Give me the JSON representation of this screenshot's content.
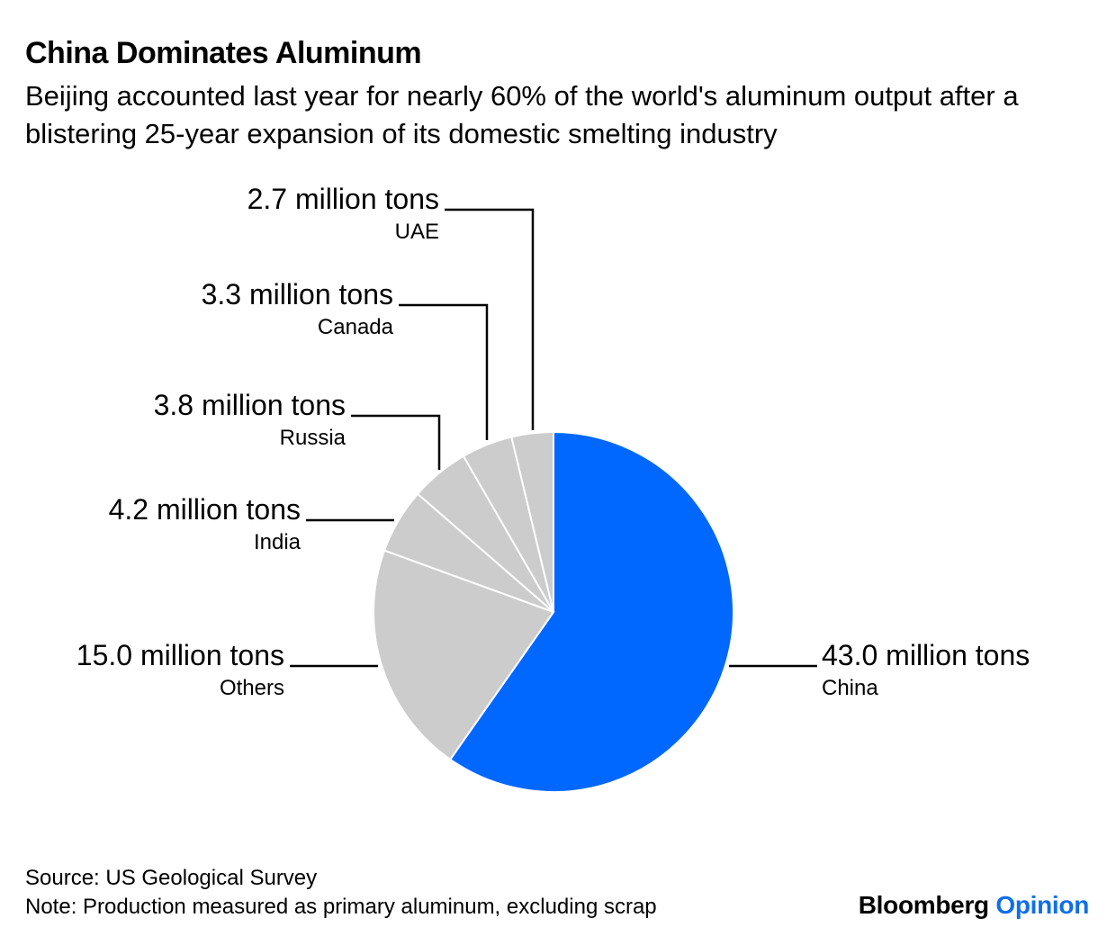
{
  "chart_data": {
    "type": "pie",
    "title": "China Dominates Aluminum",
    "subtitle": "Beijing accounted last year for nearly 60% of the world's aluminum output after a blistering 25-year expansion of its domestic smelting industry",
    "unit_suffix": " million tons",
    "slices": [
      {
        "name": "China",
        "value": 43.0,
        "label": "43.0 million tons",
        "color": "#0068ff"
      },
      {
        "name": "Others",
        "value": 15.0,
        "label": "15.0 million tons",
        "color": "#cccccc"
      },
      {
        "name": "India",
        "value": 4.2,
        "label": "4.2 million tons",
        "color": "#cccccc"
      },
      {
        "name": "Russia",
        "value": 3.8,
        "label": "3.8 million tons",
        "color": "#cccccc"
      },
      {
        "name": "Canada",
        "value": 3.3,
        "label": "3.3 million tons",
        "color": "#cccccc"
      },
      {
        "name": "UAE",
        "value": 2.7,
        "label": "2.7 million tons",
        "color": "#cccccc"
      }
    ]
  },
  "footer": {
    "source": "Source: US Geological Survey",
    "note": "Note: Production measured as primary aluminum, excluding scrap",
    "brand_main": "Bloomberg",
    "brand_accent": "Opinion",
    "accent_color": "#0f6fe8"
  }
}
